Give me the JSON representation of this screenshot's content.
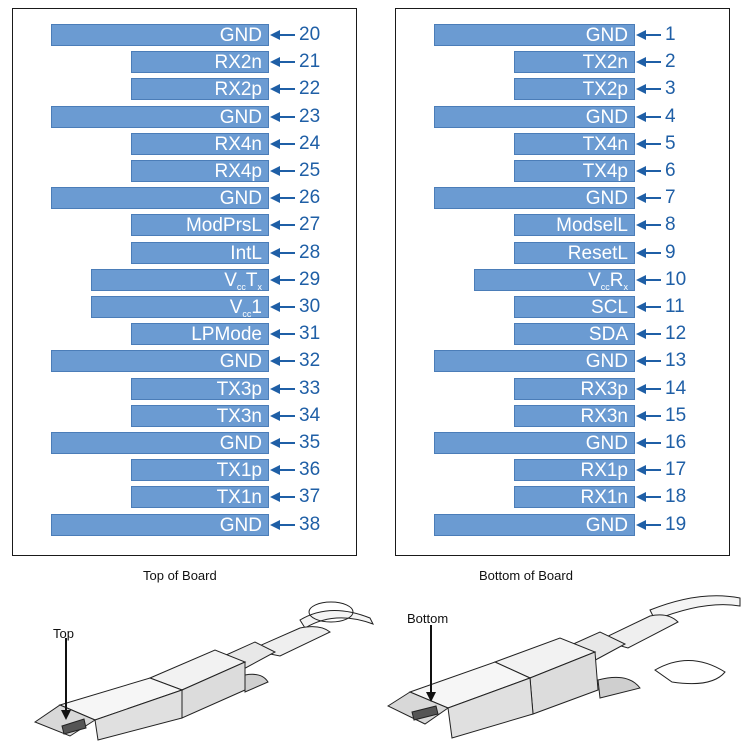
{
  "top_board": {
    "caption": "Top of Board",
    "pins": [
      {
        "label": "GND",
        "number": "20",
        "kind": "wide"
      },
      {
        "label": "RX2n",
        "number": "21",
        "kind": "short"
      },
      {
        "label": "RX2p",
        "number": "22",
        "kind": "short"
      },
      {
        "label": "GND",
        "number": "23",
        "kind": "wide"
      },
      {
        "label": "RX4n",
        "number": "24",
        "kind": "short"
      },
      {
        "label": "RX4p",
        "number": "25",
        "kind": "short"
      },
      {
        "label": "GND",
        "number": "26",
        "kind": "wide"
      },
      {
        "label": "ModPrsL",
        "number": "27",
        "kind": "short"
      },
      {
        "label": "IntL",
        "number": "28",
        "kind": "short"
      },
      {
        "label": "VccTx",
        "number": "29",
        "kind": "mid",
        "main": "V",
        "sub1": "cc",
        "main2": "T",
        "sub2": "x"
      },
      {
        "label": "Vcc1",
        "number": "30",
        "kind": "mid",
        "main": "V",
        "sub1": "cc",
        "main2": "1",
        "sub2": ""
      },
      {
        "label": "LPMode",
        "number": "31",
        "kind": "short"
      },
      {
        "label": "GND",
        "number": "32",
        "kind": "wide"
      },
      {
        "label": "TX3p",
        "number": "33",
        "kind": "short"
      },
      {
        "label": "TX3n",
        "number": "34",
        "kind": "short"
      },
      {
        "label": "GND",
        "number": "35",
        "kind": "wide"
      },
      {
        "label": "TX1p",
        "number": "36",
        "kind": "short"
      },
      {
        "label": "TX1n",
        "number": "37",
        "kind": "short"
      },
      {
        "label": "GND",
        "number": "38",
        "kind": "wide"
      }
    ]
  },
  "bottom_board": {
    "caption": "Bottom of Board",
    "pins": [
      {
        "label": "GND",
        "number": "1",
        "kind": "wide"
      },
      {
        "label": "TX2n",
        "number": "2",
        "kind": "short"
      },
      {
        "label": "TX2p",
        "number": "3",
        "kind": "short"
      },
      {
        "label": "GND",
        "number": "4",
        "kind": "wide"
      },
      {
        "label": "TX4n",
        "number": "5",
        "kind": "short"
      },
      {
        "label": "TX4p",
        "number": "6",
        "kind": "short"
      },
      {
        "label": "GND",
        "number": "7",
        "kind": "wide"
      },
      {
        "label": "ModselL",
        "number": "8",
        "kind": "short"
      },
      {
        "label": "ResetL",
        "number": "9",
        "kind": "short"
      },
      {
        "label": "VccRx",
        "number": "10",
        "kind": "mid",
        "main": "V",
        "sub1": "cc",
        "main2": "R",
        "sub2": "x"
      },
      {
        "label": "SCL",
        "number": "11",
        "kind": "short"
      },
      {
        "label": "SDA",
        "number": "12",
        "kind": "short"
      },
      {
        "label": "GND",
        "number": "13",
        "kind": "wide"
      },
      {
        "label": "RX3p",
        "number": "14",
        "kind": "short"
      },
      {
        "label": "RX3n",
        "number": "15",
        "kind": "short"
      },
      {
        "label": "GND",
        "number": "16",
        "kind": "wide"
      },
      {
        "label": "RX1p",
        "number": "17",
        "kind": "short"
      },
      {
        "label": "RX1n",
        "number": "18",
        "kind": "short"
      },
      {
        "label": "GND",
        "number": "19",
        "kind": "wide"
      }
    ]
  },
  "photos": {
    "top_label": "Top",
    "bottom_label": "Bottom"
  },
  "colors": {
    "bar_fill": "#6b9bd2",
    "bar_border": "#4b7db8",
    "number_text": "#1f5fa6",
    "arrow": "#1f5fa6"
  }
}
